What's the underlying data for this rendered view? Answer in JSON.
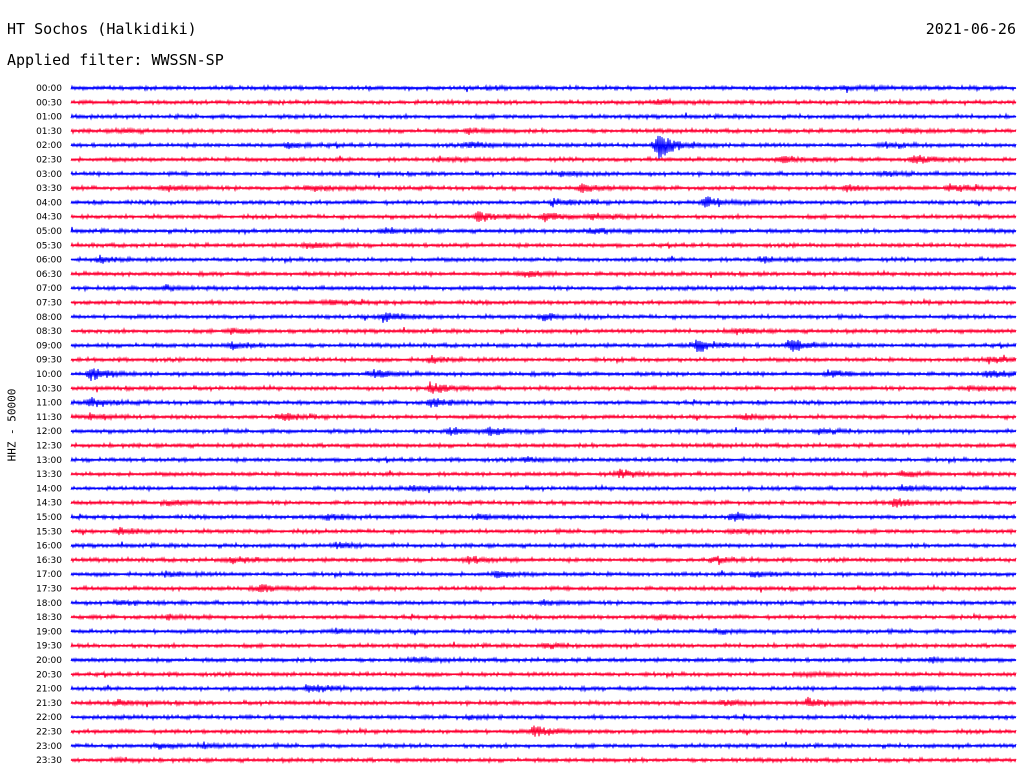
{
  "header": {
    "station": "HT Sochos (Halkidiki)",
    "date": "2021-06-26",
    "filter": "Applied filter: WWSSN-SP"
  },
  "chart_data": {
    "type": "line",
    "ylabel": "HHZ - 50000",
    "colors": [
      "#0000ff",
      "#ff0033"
    ],
    "rows": [
      {
        "label": "00:00",
        "events": [
          {
            "x": 0.44,
            "amp": 0.25
          },
          {
            "x": 0.82,
            "amp": 0.2
          }
        ]
      },
      {
        "label": "00:30",
        "events": [
          {
            "x": 0.62,
            "amp": 0.4
          }
        ]
      },
      {
        "label": "01:00",
        "events": []
      },
      {
        "label": "01:30",
        "events": [
          {
            "x": 0.05,
            "amp": 0.3
          },
          {
            "x": 0.42,
            "amp": 0.5
          },
          {
            "x": 0.88,
            "amp": 0.3
          }
        ]
      },
      {
        "label": "02:00",
        "events": [
          {
            "x": 0.23,
            "amp": 0.5
          },
          {
            "x": 0.42,
            "amp": 0.6
          },
          {
            "x": 0.62,
            "amp": 2.6
          },
          {
            "x": 0.86,
            "amp": 0.4
          }
        ]
      },
      {
        "label": "02:30",
        "events": [
          {
            "x": 0.39,
            "amp": 0.4
          },
          {
            "x": 0.75,
            "amp": 0.6
          },
          {
            "x": 0.89,
            "amp": 0.8
          }
        ]
      },
      {
        "label": "03:00",
        "events": [
          {
            "x": 0.52,
            "amp": 0.4
          },
          {
            "x": 0.86,
            "amp": 0.4
          }
        ]
      },
      {
        "label": "03:30",
        "events": [
          {
            "x": 0.1,
            "amp": 0.6
          },
          {
            "x": 0.25,
            "amp": 0.6
          },
          {
            "x": 0.54,
            "amp": 0.7
          },
          {
            "x": 0.82,
            "amp": 0.6
          },
          {
            "x": 0.93,
            "amp": 0.7
          }
        ]
      },
      {
        "label": "04:00",
        "events": [
          {
            "x": 0.51,
            "amp": 0.7
          },
          {
            "x": 0.67,
            "amp": 1.2
          }
        ]
      },
      {
        "label": "04:30",
        "events": [
          {
            "x": 0.43,
            "amp": 0.9
          },
          {
            "x": 0.5,
            "amp": 0.7
          },
          {
            "x": 0.55,
            "amp": 0.6
          }
        ]
      },
      {
        "label": "05:00",
        "events": [
          {
            "x": 0.33,
            "amp": 0.5
          },
          {
            "x": 0.55,
            "amp": 0.5
          }
        ]
      },
      {
        "label": "05:30",
        "events": [
          {
            "x": 0.25,
            "amp": 0.5
          }
        ]
      },
      {
        "label": "06:00",
        "events": [
          {
            "x": 0.03,
            "amp": 0.6
          },
          {
            "x": 0.73,
            "amp": 0.5
          }
        ]
      },
      {
        "label": "06:30",
        "events": [
          {
            "x": 0.48,
            "amp": 0.6
          }
        ]
      },
      {
        "label": "07:00",
        "events": [
          {
            "x": 0.1,
            "amp": 0.4
          }
        ]
      },
      {
        "label": "07:30",
        "events": [
          {
            "x": 0.27,
            "amp": 0.5
          }
        ]
      },
      {
        "label": "08:00",
        "events": [
          {
            "x": 0.33,
            "amp": 1.0
          },
          {
            "x": 0.5,
            "amp": 0.7
          }
        ]
      },
      {
        "label": "08:30",
        "events": [
          {
            "x": 0.17,
            "amp": 0.5
          },
          {
            "x": 0.7,
            "amp": 0.5
          }
        ]
      },
      {
        "label": "09:00",
        "events": [
          {
            "x": 0.17,
            "amp": 0.6
          },
          {
            "x": 0.66,
            "amp": 1.3
          },
          {
            "x": 0.76,
            "amp": 1.2
          }
        ]
      },
      {
        "label": "09:30",
        "events": [
          {
            "x": 0.38,
            "amp": 0.6
          },
          {
            "x": 0.97,
            "amp": 0.6
          }
        ]
      },
      {
        "label": "10:00",
        "events": [
          {
            "x": 0.02,
            "amp": 1.2
          },
          {
            "x": 0.32,
            "amp": 0.8
          },
          {
            "x": 0.8,
            "amp": 0.6
          },
          {
            "x": 0.97,
            "amp": 0.6
          }
        ]
      },
      {
        "label": "10:30",
        "events": [
          {
            "x": 0.38,
            "amp": 1.0
          },
          {
            "x": 0.95,
            "amp": 0.5
          }
        ]
      },
      {
        "label": "11:00",
        "events": [
          {
            "x": 0.02,
            "amp": 0.8
          },
          {
            "x": 0.38,
            "amp": 0.9
          }
        ]
      },
      {
        "label": "11:30",
        "events": [
          {
            "x": 0.02,
            "amp": 0.6
          },
          {
            "x": 0.22,
            "amp": 0.8
          },
          {
            "x": 0.71,
            "amp": 0.5
          }
        ]
      },
      {
        "label": "12:00",
        "events": [
          {
            "x": 0.4,
            "amp": 0.6
          },
          {
            "x": 0.44,
            "amp": 0.9
          },
          {
            "x": 0.79,
            "amp": 0.5
          }
        ]
      },
      {
        "label": "12:30",
        "events": []
      },
      {
        "label": "13:00",
        "events": [
          {
            "x": 0.48,
            "amp": 0.4
          }
        ]
      },
      {
        "label": "13:30",
        "events": [
          {
            "x": 0.58,
            "amp": 0.7
          },
          {
            "x": 0.88,
            "amp": 0.4
          }
        ]
      },
      {
        "label": "14:00",
        "events": [
          {
            "x": 0.36,
            "amp": 0.5
          },
          {
            "x": 0.88,
            "amp": 0.5
          }
        ]
      },
      {
        "label": "14:30",
        "events": [
          {
            "x": 0.1,
            "amp": 0.5
          },
          {
            "x": 0.87,
            "amp": 0.9
          }
        ]
      },
      {
        "label": "15:00",
        "events": [
          {
            "x": 0.27,
            "amp": 0.5
          },
          {
            "x": 0.43,
            "amp": 0.5
          },
          {
            "x": 0.7,
            "amp": 0.9
          }
        ]
      },
      {
        "label": "15:30",
        "events": [
          {
            "x": 0.05,
            "amp": 0.6
          },
          {
            "x": 0.7,
            "amp": 0.5
          }
        ]
      },
      {
        "label": "16:00",
        "events": [
          {
            "x": 0.28,
            "amp": 0.5
          }
        ]
      },
      {
        "label": "16:30",
        "events": [
          {
            "x": 0.17,
            "amp": 0.6
          },
          {
            "x": 0.42,
            "amp": 0.7
          },
          {
            "x": 0.68,
            "amp": 0.5
          }
        ]
      },
      {
        "label": "17:00",
        "events": [
          {
            "x": 0.1,
            "amp": 0.5
          },
          {
            "x": 0.45,
            "amp": 0.5
          },
          {
            "x": 0.72,
            "amp": 0.5
          }
        ]
      },
      {
        "label": "17:30",
        "events": [
          {
            "x": 0.2,
            "amp": 0.7
          }
        ]
      },
      {
        "label": "18:00",
        "events": [
          {
            "x": 0.05,
            "amp": 0.4
          },
          {
            "x": 0.5,
            "amp": 0.4
          }
        ]
      },
      {
        "label": "18:30",
        "events": [
          {
            "x": 0.1,
            "amp": 0.4
          },
          {
            "x": 0.62,
            "amp": 0.4
          }
        ]
      },
      {
        "label": "19:00",
        "events": [
          {
            "x": 0.28,
            "amp": 0.4
          },
          {
            "x": 0.68,
            "amp": 0.4
          }
        ]
      },
      {
        "label": "19:30",
        "events": [
          {
            "x": 0.5,
            "amp": 0.4
          }
        ]
      },
      {
        "label": "20:00",
        "events": [
          {
            "x": 0.36,
            "amp": 0.4
          },
          {
            "x": 0.91,
            "amp": 0.5
          }
        ]
      },
      {
        "label": "20:30",
        "events": [
          {
            "x": 0.77,
            "amp": 0.4
          }
        ]
      },
      {
        "label": "21:00",
        "events": [
          {
            "x": 0.25,
            "amp": 0.9
          },
          {
            "x": 0.89,
            "amp": 0.4
          }
        ]
      },
      {
        "label": "21:30",
        "events": [
          {
            "x": 0.05,
            "amp": 0.4
          },
          {
            "x": 0.69,
            "amp": 0.5
          },
          {
            "x": 0.78,
            "amp": 0.9
          }
        ]
      },
      {
        "label": "22:00",
        "events": [
          {
            "x": 0.42,
            "amp": 0.3
          }
        ]
      },
      {
        "label": "22:30",
        "events": [
          {
            "x": 0.49,
            "amp": 1.0
          }
        ]
      },
      {
        "label": "23:00",
        "events": [
          {
            "x": 0.09,
            "amp": 0.4
          },
          {
            "x": 0.14,
            "amp": 0.4
          }
        ]
      },
      {
        "label": "23:30",
        "events": [
          {
            "x": 0.05,
            "amp": 0.3
          }
        ]
      }
    ]
  }
}
